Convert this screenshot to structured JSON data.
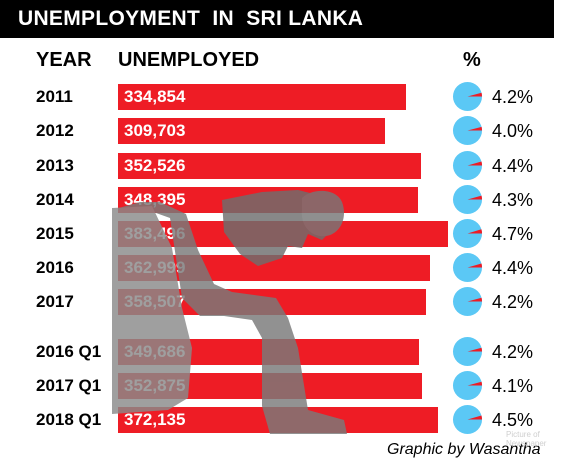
{
  "title": "UNEMPLOYMENT  IN  SRI LANKA",
  "headers": {
    "year": "YEAR",
    "unemployed": "UNEMPLOYED",
    "percent": "%"
  },
  "credit": "Graphic by Wasantha",
  "stamp": "Picture of Newspaper",
  "colors": {
    "bar": "#ee1c25",
    "pie": "#5bc8f5",
    "pie_slice": "#ee1c25",
    "title_bg": "#000000"
  },
  "chart_data": {
    "type": "bar",
    "title": "UNEMPLOYMENT  IN  SRI LANKA",
    "orientation": "horizontal",
    "categories": [
      "2011",
      "2012",
      "2013",
      "2014",
      "2015",
      "2016",
      "2017",
      "2016 Q1",
      "2017 Q1",
      "2018 Q1"
    ],
    "series": [
      {
        "values": [
          334854,
          309703,
          352526,
          348395,
          383496,
          362999,
          358507,
          349686,
          352875,
          372135
        ]
      }
    ],
    "value_labels": [
      "334,854",
      "309,703",
      "352,526",
      "348,395",
      "383,496",
      "362,999",
      "358,507",
      "349,686",
      "352,875",
      "372,135"
    ],
    "percent_values": [
      4.2,
      4.0,
      4.4,
      4.3,
      4.7,
      4.4,
      4.2,
      4.2,
      4.1,
      4.5
    ],
    "percent_labels": [
      "4.2%",
      "4.0%",
      "4.4%",
      "4.3%",
      "4.7%",
      "4.4%",
      "4.2%",
      "4.2%",
      "4.1%",
      "4.5%"
    ],
    "grid": false,
    "legend": "none"
  }
}
